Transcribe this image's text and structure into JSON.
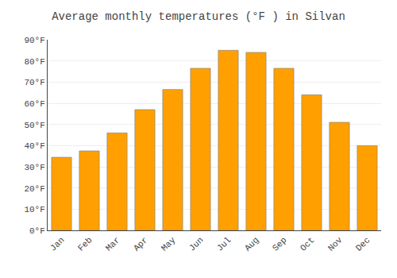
{
  "chart_data": {
    "type": "bar",
    "title": "Average monthly temperatures (°F ) in Silvan",
    "categories": [
      "Jan",
      "Feb",
      "Mar",
      "Apr",
      "May",
      "Jun",
      "Jul",
      "Aug",
      "Sep",
      "Oct",
      "Nov",
      "Dec"
    ],
    "values": [
      34.5,
      37.5,
      46,
      57,
      66.5,
      76.5,
      85,
      84,
      76.5,
      64,
      51,
      40
    ],
    "color": "#FFA000",
    "ylim": [
      0,
      90
    ],
    "yticks": [
      {
        "value": 0,
        "label": "0°F"
      },
      {
        "value": 10,
        "label": "10°F"
      },
      {
        "value": 20,
        "label": "20°F"
      },
      {
        "value": 30,
        "label": "30°F"
      },
      {
        "value": 40,
        "label": "40°F"
      },
      {
        "value": 50,
        "label": "50°F"
      },
      {
        "value": 60,
        "label": "60°F"
      },
      {
        "value": 70,
        "label": "70°F"
      },
      {
        "value": 80,
        "label": "80°F"
      },
      {
        "value": 90,
        "label": "90°F"
      }
    ],
    "grid": true
  }
}
